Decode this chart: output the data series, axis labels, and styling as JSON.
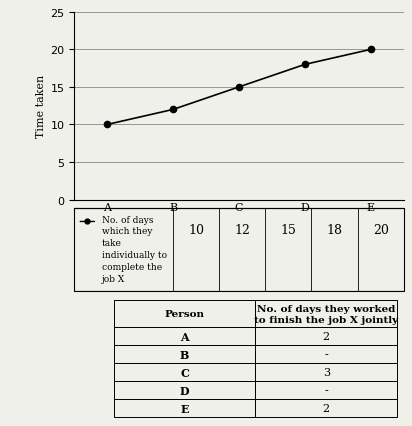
{
  "persons": [
    "A",
    "B",
    "C",
    "D",
    "E"
  ],
  "individual_days": [
    10,
    12,
    15,
    18,
    20
  ],
  "legend_label_lines": [
    "No. of days",
    "which they",
    "take",
    "individually to",
    "complete the",
    "job X"
  ],
  "ylabel": "Time taken",
  "ylim": [
    0,
    25
  ],
  "yticks": [
    0,
    5,
    10,
    15,
    20,
    25
  ],
  "joint_persons": [
    "A",
    "B",
    "C",
    "D",
    "E"
  ],
  "joint_days": [
    "2",
    "-",
    "3",
    "-",
    "2"
  ],
  "col2_header_line1": "No. of days they worked",
  "col2_header_line2": "to finish the job X jointly",
  "col1_header": "Person",
  "bg_color": "#f0f0eb",
  "chart_bg": "#f0f0eb",
  "line_color": "black",
  "marker_color": "black"
}
